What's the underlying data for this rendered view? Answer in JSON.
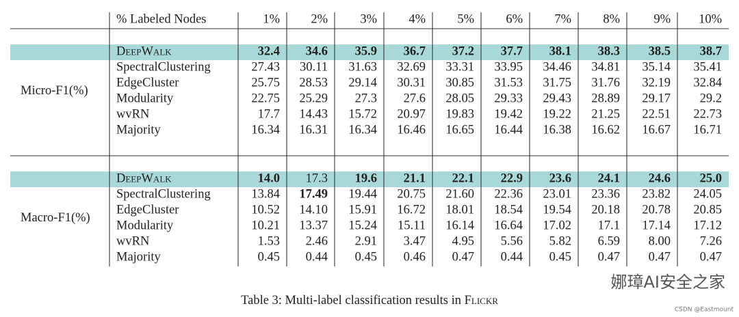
{
  "header": {
    "label": "% Labeled Nodes",
    "columns": [
      "1%",
      "2%",
      "3%",
      "4%",
      "5%",
      "6%",
      "7%",
      "8%",
      "9%",
      "10%"
    ]
  },
  "sections": [
    {
      "metric": "Micro-F1(%)",
      "rows": [
        {
          "method": "DeepWalk",
          "highlight": true,
          "values": [
            "32.4",
            "34.6",
            "35.9",
            "36.7",
            "37.2",
            "37.7",
            "38.1",
            "38.3",
            "38.5",
            "38.7"
          ],
          "bold": [
            true,
            true,
            true,
            true,
            true,
            true,
            true,
            true,
            true,
            true
          ]
        },
        {
          "method": "SpectralClustering",
          "values": [
            "27.43",
            "30.11",
            "31.63",
            "32.69",
            "33.31",
            "33.95",
            "34.46",
            "34.81",
            "35.14",
            "35.41"
          ]
        },
        {
          "method": "EdgeCluster",
          "values": [
            "25.75",
            "28.53",
            "29.14",
            "30.31",
            "30.85",
            "31.53",
            "31.75",
            "31.76",
            "32.19",
            "32.84"
          ]
        },
        {
          "method": "Modularity",
          "values": [
            "22.75",
            "25.29",
            "27.3",
            "27.6",
            "28.05",
            "29.33",
            "29.43",
            "28.89",
            "29.17",
            "29.2"
          ]
        },
        {
          "method": "wvRN",
          "values": [
            "17.7",
            "14.43",
            "15.72",
            "20.97",
            "19.83",
            "19.42",
            "19.22",
            "21.25",
            "22.51",
            "22.73"
          ]
        },
        {
          "method": "Majority",
          "values": [
            "16.34",
            "16.31",
            "16.34",
            "16.46",
            "16.65",
            "16.44",
            "16.38",
            "16.62",
            "16.67",
            "16.71"
          ]
        }
      ]
    },
    {
      "metric": "Macro-F1(%)",
      "rows": [
        {
          "method": "DeepWalk",
          "highlight": true,
          "values": [
            "14.0",
            "17.3",
            "19.6",
            "21.1",
            "22.1",
            "22.9",
            "23.6",
            "24.1",
            "24.6",
            "25.0"
          ],
          "bold": [
            true,
            false,
            true,
            true,
            true,
            true,
            true,
            true,
            true,
            true
          ]
        },
        {
          "method": "SpectralClustering",
          "values": [
            "13.84",
            "17.49",
            "19.44",
            "20.75",
            "21.60",
            "22.36",
            "23.01",
            "23.36",
            "23.82",
            "24.05"
          ],
          "bold": [
            false,
            true,
            false,
            false,
            false,
            false,
            false,
            false,
            false,
            false
          ]
        },
        {
          "method": "EdgeCluster",
          "values": [
            "10.52",
            "14.10",
            "15.91",
            "16.72",
            "18.01",
            "18.54",
            "19.54",
            "20.18",
            "20.78",
            "20.85"
          ]
        },
        {
          "method": "Modularity",
          "values": [
            "10.21",
            "13.37",
            "15.24",
            "15.11",
            "16.14",
            "16.64",
            "17.02",
            "17.1",
            "17.14",
            "17.12"
          ]
        },
        {
          "method": "wvRN",
          "values": [
            "1.53",
            "2.46",
            "2.91",
            "3.47",
            "4.95",
            "5.56",
            "5.82",
            "6.59",
            "8.00",
            "7.26"
          ]
        },
        {
          "method": "Majority",
          "values": [
            "0.45",
            "0.44",
            "0.45",
            "0.46",
            "0.47",
            "0.44",
            "0.45",
            "0.47",
            "0.47",
            "0.47"
          ]
        }
      ]
    }
  ],
  "caption": {
    "text": "Table 3: Multi-label classification results in ",
    "dataset": "Flickr"
  },
  "watermark": {
    "text": "娜璋AI安全之家",
    "source": "CSDN @Eastmount"
  }
}
